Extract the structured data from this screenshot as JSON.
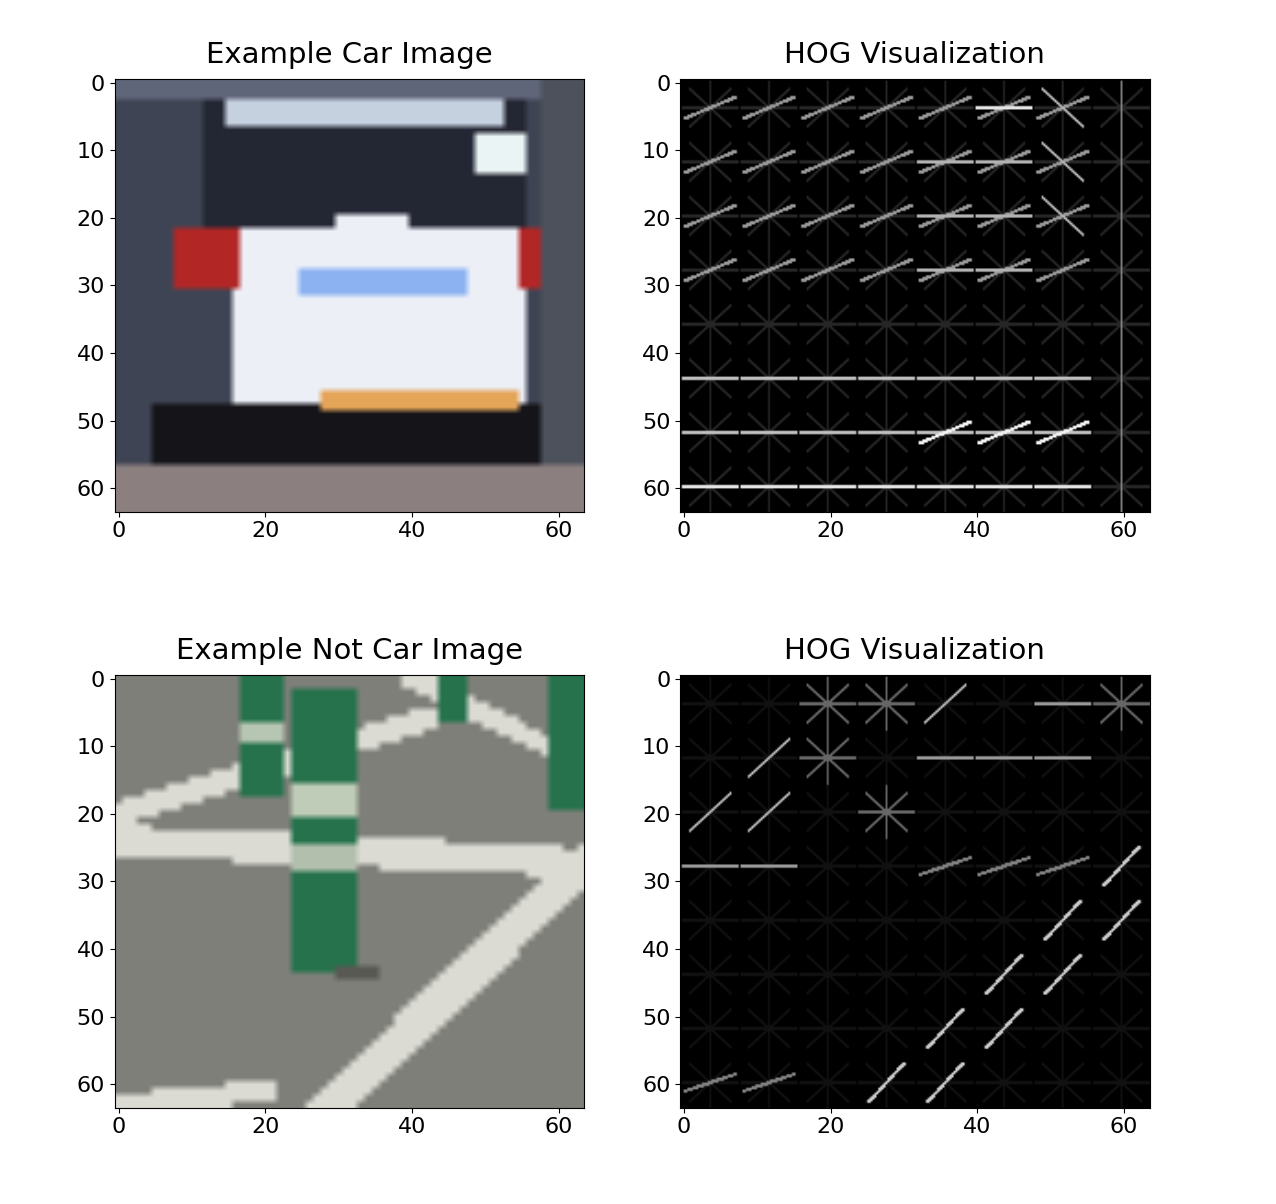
{
  "chart_data": [
    {
      "type": "image",
      "title": "Example Car Image",
      "xlim": [
        -0.5,
        63.5
      ],
      "ylim": [
        63.5,
        -0.5
      ],
      "xticks": [
        0,
        20,
        40,
        60
      ],
      "yticks": [
        0,
        10,
        20,
        30,
        40,
        50,
        60
      ]
    },
    {
      "type": "image",
      "title": "HOG Visualization",
      "xlim": [
        -0.5,
        63.5
      ],
      "ylim": [
        63.5,
        -0.5
      ],
      "xticks": [
        0,
        20,
        40,
        60
      ],
      "yticks": [
        0,
        10,
        20,
        30,
        40,
        50,
        60
      ]
    },
    {
      "type": "image",
      "title": "Example Not Car Image",
      "xlim": [
        -0.5,
        63.5
      ],
      "ylim": [
        63.5,
        -0.5
      ],
      "xticks": [
        0,
        20,
        40,
        60
      ],
      "yticks": [
        0,
        10,
        20,
        30,
        40,
        50,
        60
      ]
    },
    {
      "type": "image",
      "title": "HOG Visualization",
      "xlim": [
        -0.5,
        63.5
      ],
      "ylim": [
        63.5,
        -0.5
      ],
      "xticks": [
        0,
        20,
        40,
        60
      ],
      "yticks": [
        0,
        10,
        20,
        30,
        40,
        50,
        60
      ]
    }
  ]
}
